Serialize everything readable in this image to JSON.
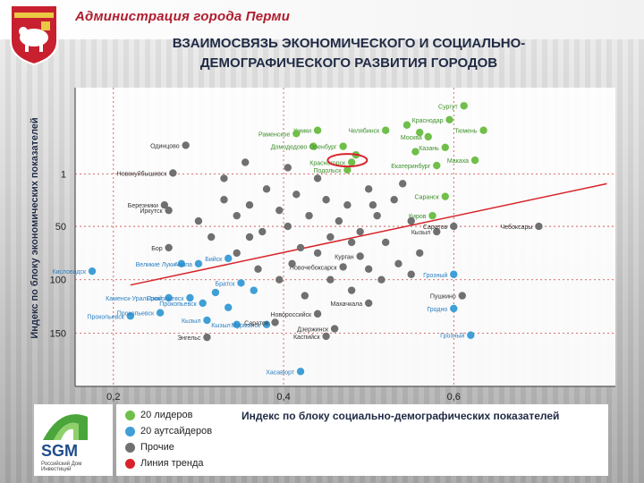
{
  "header": {
    "admin_title": "Администрация города Перми",
    "title_line1": "ВЗАИМОСВЯЗЬ ЭКОНОМИЧЕСКОГО И СОЦИАЛЬНО-",
    "title_line2": "ДЕМОГРАФИЧЕСКОГО РАЗВИТИЯ ГОРОДОВ"
  },
  "logo": {
    "name": "SGM",
    "subtitle": "Российский Дом Инвестиций"
  },
  "colors": {
    "leaders": "#6fbf4a",
    "outsiders": "#3f9fd6",
    "others": "#707070",
    "trend": "#d8232a",
    "label_leaders": "#3d8f2a",
    "label_outsiders": "#2b7fc2"
  },
  "legend": [
    {
      "label": "20 лидеров",
      "color_key": "leaders"
    },
    {
      "label": "20 аутсайдеров",
      "color_key": "outsiders"
    },
    {
      "label": "Прочие",
      "color_key": "others"
    },
    {
      "label": "Линия тренда",
      "color_key": "trend"
    }
  ],
  "chart_data": {
    "type": "scatter",
    "title": "",
    "xlabel": "Индекс по блоку социально-демографических показателей",
    "ylabel": "Индекс по блоку экономических показателей",
    "x_ticks": [
      "0,2",
      "0,4",
      "0,6"
    ],
    "x_tick_values": [
      0.2,
      0.4,
      0.6
    ],
    "y_ticks": [
      "1",
      "50",
      "100",
      "150"
    ],
    "y_tick_values": [
      1,
      50,
      100,
      150
    ],
    "xlim": [
      0.155,
      0.79
    ],
    "ylim": [
      200,
      -80
    ],
    "y_inverted": true,
    "grid": true,
    "trend_line": [
      [
        0.22,
        105
      ],
      [
        0.78,
        10
      ]
    ],
    "highlight": {
      "x": 0.475,
      "y": -12,
      "shape": "ellipse"
    },
    "series": [
      {
        "name": "20 лидеров",
        "points": [
          {
            "x": 0.612,
            "y": -63,
            "label": "Сургут"
          },
          {
            "x": 0.595,
            "y": -50,
            "label": "Краснодар"
          },
          {
            "x": 0.635,
            "y": -40,
            "label": "Тюмень"
          },
          {
            "x": 0.57,
            "y": -34,
            "label": "Москва"
          },
          {
            "x": 0.59,
            "y": -24,
            "label": "Казань"
          },
          {
            "x": 0.625,
            "y": -12,
            "label": "Макаха"
          },
          {
            "x": 0.58,
            "y": -7,
            "label": "Екатеринбург"
          },
          {
            "x": 0.44,
            "y": -40,
            "label": "Химки"
          },
          {
            "x": 0.415,
            "y": -37,
            "label": "Раменское"
          },
          {
            "x": 0.435,
            "y": -25,
            "label": "Домодедово"
          },
          {
            "x": 0.47,
            "y": -25,
            "label": "Оренбург"
          },
          {
            "x": 0.48,
            "y": -10,
            "label": "Красногорск"
          },
          {
            "x": 0.475,
            "y": -3,
            "label": "Подольск"
          },
          {
            "x": 0.52,
            "y": -40,
            "label": "Челябинск"
          },
          {
            "x": 0.545,
            "y": -45,
            "label": ""
          },
          {
            "x": 0.56,
            "y": -38,
            "label": ""
          },
          {
            "x": 0.59,
            "y": 22,
            "label": "Саранск"
          },
          {
            "x": 0.575,
            "y": 40,
            "label": "Киров"
          },
          {
            "x": 0.555,
            "y": -20,
            "label": ""
          },
          {
            "x": 0.485,
            "y": -17,
            "label": ""
          }
        ]
      },
      {
        "name": "20 аутсайдеров",
        "points": [
          {
            "x": 0.28,
            "y": 85,
            "label": "Великие Луки"
          },
          {
            "x": 0.175,
            "y": 92,
            "label": "Кисловодск"
          },
          {
            "x": 0.3,
            "y": 85,
            "label": "Анапа"
          },
          {
            "x": 0.335,
            "y": 80,
            "label": "Бийск"
          },
          {
            "x": 0.265,
            "y": 117,
            "label": "Каменск-Уральский"
          },
          {
            "x": 0.29,
            "y": 117,
            "label": "Прокопьевск"
          },
          {
            "x": 0.22,
            "y": 134,
            "label": "Прокопьевск"
          },
          {
            "x": 0.255,
            "y": 131,
            "label": "Прокопьевск"
          },
          {
            "x": 0.305,
            "y": 122,
            "label": "Прокопьевск"
          },
          {
            "x": 0.31,
            "y": 138,
            "label": "Кызыл"
          },
          {
            "x": 0.345,
            "y": 142,
            "label": "Кызыл"
          },
          {
            "x": 0.35,
            "y": 103,
            "label": "Братск"
          },
          {
            "x": 0.38,
            "y": 142,
            "label": "Мурманск"
          },
          {
            "x": 0.6,
            "y": 127,
            "label": "Гродно"
          },
          {
            "x": 0.6,
            "y": 95,
            "label": "Грозный"
          },
          {
            "x": 0.62,
            "y": 152,
            "label": "Грозный"
          },
          {
            "x": 0.42,
            "y": 186,
            "label": "Хасавюрт"
          },
          {
            "x": 0.32,
            "y": 112,
            "label": ""
          },
          {
            "x": 0.335,
            "y": 126,
            "label": ""
          },
          {
            "x": 0.365,
            "y": 110,
            "label": ""
          }
        ]
      },
      {
        "name": "Прочие",
        "points": [
          {
            "x": 0.285,
            "y": -26,
            "label": "Одинцово"
          },
          {
            "x": 0.27,
            "y": 0,
            "label": "Новокуйбышевск"
          },
          {
            "x": 0.26,
            "y": 30,
            "label": "Березники"
          },
          {
            "x": 0.265,
            "y": 35,
            "label": "Иркутск"
          },
          {
            "x": 0.265,
            "y": 70,
            "label": "Бор"
          },
          {
            "x": 0.47,
            "y": 88,
            "label": "Новочебоксарск"
          },
          {
            "x": 0.49,
            "y": 78,
            "label": "Курган"
          },
          {
            "x": 0.58,
            "y": 55,
            "label": "Кызыл"
          },
          {
            "x": 0.7,
            "y": 50,
            "label": "Чебоксары"
          },
          {
            "x": 0.6,
            "y": 50,
            "label": "Саратов"
          },
          {
            "x": 0.5,
            "y": 122,
            "label": "Махачкала"
          },
          {
            "x": 0.39,
            "y": 140,
            "label": "Саратов"
          },
          {
            "x": 0.44,
            "y": 132,
            "label": "Новороссийск"
          },
          {
            "x": 0.45,
            "y": 153,
            "label": "Каспийск"
          },
          {
            "x": 0.46,
            "y": 146,
            "label": "Дзержинск"
          },
          {
            "x": 0.31,
            "y": 154,
            "label": "Энгельс"
          },
          {
            "x": 0.61,
            "y": 115,
            "label": "Пушкино"
          },
          {
            "x": 0.33,
            "y": 25,
            "label": ""
          },
          {
            "x": 0.345,
            "y": 40,
            "label": ""
          },
          {
            "x": 0.36,
            "y": 60,
            "label": ""
          },
          {
            "x": 0.38,
            "y": 15,
            "label": ""
          },
          {
            "x": 0.395,
            "y": 35,
            "label": ""
          },
          {
            "x": 0.405,
            "y": 50,
            "label": ""
          },
          {
            "x": 0.415,
            "y": 20,
            "label": ""
          },
          {
            "x": 0.42,
            "y": 70,
            "label": ""
          },
          {
            "x": 0.43,
            "y": 40,
            "label": ""
          },
          {
            "x": 0.44,
            "y": 5,
            "label": ""
          },
          {
            "x": 0.45,
            "y": 25,
            "label": ""
          },
          {
            "x": 0.455,
            "y": 60,
            "label": ""
          },
          {
            "x": 0.465,
            "y": 45,
            "label": ""
          },
          {
            "x": 0.475,
            "y": 30,
            "label": ""
          },
          {
            "x": 0.49,
            "y": 55,
            "label": ""
          },
          {
            "x": 0.5,
            "y": 15,
            "label": ""
          },
          {
            "x": 0.51,
            "y": 40,
            "label": ""
          },
          {
            "x": 0.52,
            "y": 65,
            "label": ""
          },
          {
            "x": 0.53,
            "y": 25,
            "label": ""
          },
          {
            "x": 0.54,
            "y": 10,
            "label": ""
          },
          {
            "x": 0.55,
            "y": 45,
            "label": ""
          },
          {
            "x": 0.56,
            "y": 75,
            "label": ""
          },
          {
            "x": 0.37,
            "y": 90,
            "label": ""
          },
          {
            "x": 0.395,
            "y": 100,
            "label": ""
          },
          {
            "x": 0.41,
            "y": 85,
            "label": ""
          },
          {
            "x": 0.425,
            "y": 115,
            "label": ""
          },
          {
            "x": 0.455,
            "y": 100,
            "label": ""
          },
          {
            "x": 0.48,
            "y": 110,
            "label": ""
          },
          {
            "x": 0.33,
            "y": 5,
            "label": ""
          },
          {
            "x": 0.355,
            "y": -10,
            "label": ""
          },
          {
            "x": 0.405,
            "y": -5,
            "label": ""
          },
          {
            "x": 0.3,
            "y": 45,
            "label": ""
          },
          {
            "x": 0.315,
            "y": 60,
            "label": ""
          },
          {
            "x": 0.345,
            "y": 75,
            "label": ""
          },
          {
            "x": 0.5,
            "y": 90,
            "label": ""
          },
          {
            "x": 0.515,
            "y": 100,
            "label": ""
          },
          {
            "x": 0.535,
            "y": 85,
            "label": ""
          },
          {
            "x": 0.55,
            "y": 95,
            "label": ""
          },
          {
            "x": 0.44,
            "y": 75,
            "label": ""
          },
          {
            "x": 0.375,
            "y": 55,
            "label": ""
          },
          {
            "x": 0.36,
            "y": 30,
            "label": ""
          },
          {
            "x": 0.48,
            "y": 65,
            "label": ""
          },
          {
            "x": 0.505,
            "y": 30,
            "label": ""
          }
        ]
      }
    ]
  }
}
